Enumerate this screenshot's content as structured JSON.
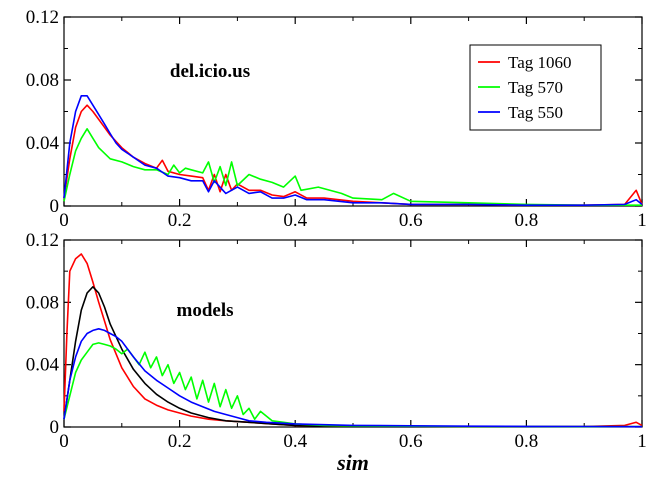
{
  "chart_data": [
    {
      "type": "line",
      "panel": "top",
      "title": "del.icio.us",
      "xlabel": "",
      "ylabel": "",
      "xlim": [
        0,
        1
      ],
      "ylim": [
        0,
        0.12
      ],
      "xticks": [
        "0",
        "0.2",
        "0.4",
        "0.6",
        "0.8",
        "1"
      ],
      "yticks": [
        "0",
        "0.04",
        "0.08",
        "0.12"
      ],
      "grid": false,
      "legend": {
        "placement": "top-right",
        "entries": [
          "Tag 1060",
          "Tag 570",
          "Tag 550"
        ]
      },
      "series": [
        {
          "name": "Tag 1060",
          "color": "#ff0000",
          "x": [
            0,
            0.01,
            0.02,
            0.03,
            0.04,
            0.05,
            0.06,
            0.07,
            0.08,
            0.09,
            0.1,
            0.12,
            0.14,
            0.16,
            0.17,
            0.18,
            0.2,
            0.22,
            0.24,
            0.25,
            0.26,
            0.27,
            0.28,
            0.29,
            0.3,
            0.32,
            0.34,
            0.36,
            0.38,
            0.4,
            0.42,
            0.45,
            0.5,
            0.55,
            0.6,
            0.7,
            0.8,
            0.9,
            0.97,
            0.99,
            1.0
          ],
          "y": [
            0.005,
            0.03,
            0.05,
            0.06,
            0.064,
            0.06,
            0.055,
            0.05,
            0.045,
            0.041,
            0.037,
            0.031,
            0.027,
            0.024,
            0.029,
            0.022,
            0.02,
            0.019,
            0.018,
            0.01,
            0.02,
            0.009,
            0.02,
            0.01,
            0.014,
            0.01,
            0.01,
            0.007,
            0.006,
            0.009,
            0.005,
            0.005,
            0.003,
            0.002,
            0.001,
            0.001,
            0.0005,
            0.0005,
            0.001,
            0.01,
            0.001
          ]
        },
        {
          "name": "Tag 570",
          "color": "#00ff00",
          "x": [
            0,
            0.01,
            0.02,
            0.03,
            0.04,
            0.05,
            0.06,
            0.08,
            0.1,
            0.12,
            0.14,
            0.16,
            0.18,
            0.19,
            0.2,
            0.21,
            0.22,
            0.24,
            0.25,
            0.26,
            0.27,
            0.28,
            0.29,
            0.3,
            0.32,
            0.34,
            0.36,
            0.38,
            0.4,
            0.41,
            0.44,
            0.48,
            0.5,
            0.55,
            0.57,
            0.6,
            0.7,
            0.8,
            0.9,
            1.0
          ],
          "y": [
            0.003,
            0.02,
            0.035,
            0.043,
            0.049,
            0.043,
            0.037,
            0.03,
            0.028,
            0.025,
            0.023,
            0.023,
            0.02,
            0.026,
            0.021,
            0.024,
            0.023,
            0.021,
            0.028,
            0.015,
            0.025,
            0.013,
            0.028,
            0.013,
            0.02,
            0.017,
            0.015,
            0.012,
            0.019,
            0.01,
            0.012,
            0.008,
            0.005,
            0.004,
            0.008,
            0.003,
            0.002,
            0.001,
            0.0005,
            0.0005
          ]
        },
        {
          "name": "Tag 550",
          "color": "#0000ff",
          "x": [
            0,
            0.01,
            0.02,
            0.03,
            0.04,
            0.05,
            0.06,
            0.07,
            0.08,
            0.09,
            0.1,
            0.12,
            0.14,
            0.16,
            0.18,
            0.2,
            0.22,
            0.24,
            0.25,
            0.26,
            0.28,
            0.3,
            0.32,
            0.34,
            0.36,
            0.38,
            0.4,
            0.42,
            0.45,
            0.5,
            0.55,
            0.6,
            0.7,
            0.8,
            0.9,
            0.97,
            0.99,
            1.0
          ],
          "y": [
            0.005,
            0.04,
            0.06,
            0.07,
            0.07,
            0.064,
            0.058,
            0.052,
            0.046,
            0.04,
            0.036,
            0.031,
            0.026,
            0.024,
            0.019,
            0.018,
            0.016,
            0.016,
            0.009,
            0.016,
            0.008,
            0.012,
            0.008,
            0.009,
            0.005,
            0.005,
            0.007,
            0.004,
            0.004,
            0.002,
            0.002,
            0.001,
            0.001,
            0.0005,
            0.0005,
            0.001,
            0.004,
            0.001
          ]
        }
      ]
    },
    {
      "type": "line",
      "panel": "bottom",
      "title": "models",
      "xlabel": "sim",
      "ylabel": "",
      "xlim": [
        0,
        1
      ],
      "ylim": [
        0,
        0.12
      ],
      "xticks": [
        "0",
        "0.2",
        "0.4",
        "0.6",
        "0.8",
        "1"
      ],
      "yticks": [
        "0",
        "0.04",
        "0.08",
        "0.12"
      ],
      "grid": false,
      "series": [
        {
          "color": "#ff0000",
          "x": [
            0,
            0.005,
            0.01,
            0.02,
            0.03,
            0.04,
            0.05,
            0.06,
            0.07,
            0.08,
            0.1,
            0.12,
            0.14,
            0.16,
            0.18,
            0.2,
            0.22,
            0.25,
            0.28,
            0.32,
            0.36,
            0.4,
            0.5,
            0.6,
            0.7,
            0.8,
            0.9,
            0.97,
            0.99,
            1.0
          ],
          "y": [
            0.01,
            0.06,
            0.1,
            0.108,
            0.111,
            0.105,
            0.093,
            0.08,
            0.068,
            0.056,
            0.038,
            0.026,
            0.018,
            0.014,
            0.011,
            0.009,
            0.007,
            0.005,
            0.004,
            0.003,
            0.002,
            0.001,
            0.0005,
            0.0005,
            0.0003,
            0.0003,
            0.0003,
            0.001,
            0.003,
            0.001
          ]
        },
        {
          "color": "#000000",
          "x": [
            0,
            0.01,
            0.02,
            0.03,
            0.04,
            0.05,
            0.06,
            0.07,
            0.08,
            0.1,
            0.12,
            0.14,
            0.16,
            0.18,
            0.2,
            0.22,
            0.25,
            0.28,
            0.32,
            0.36,
            0.4,
            0.5,
            0.6,
            0.7,
            0.8,
            0.9,
            1.0
          ],
          "y": [
            0.005,
            0.03,
            0.055,
            0.075,
            0.086,
            0.09,
            0.086,
            0.077,
            0.066,
            0.05,
            0.037,
            0.028,
            0.021,
            0.016,
            0.012,
            0.009,
            0.006,
            0.004,
            0.003,
            0.002,
            0.001,
            0.0005,
            0.0003,
            0.0003,
            0.0002,
            0.0002,
            0.0002
          ]
        },
        {
          "color": "#00ff00",
          "x": [
            0,
            0.01,
            0.02,
            0.03,
            0.04,
            0.05,
            0.06,
            0.07,
            0.08,
            0.09,
            0.1,
            0.11,
            0.12,
            0.13,
            0.14,
            0.15,
            0.16,
            0.17,
            0.18,
            0.19,
            0.2,
            0.21,
            0.22,
            0.23,
            0.24,
            0.25,
            0.26,
            0.27,
            0.28,
            0.29,
            0.3,
            0.31,
            0.32,
            0.33,
            0.34,
            0.36,
            0.38,
            0.4,
            0.45,
            0.5,
            0.6,
            0.7,
            0.8,
            0.9,
            1.0
          ],
          "y": [
            0.005,
            0.02,
            0.035,
            0.043,
            0.048,
            0.053,
            0.054,
            0.053,
            0.052,
            0.05,
            0.047,
            0.05,
            0.045,
            0.04,
            0.048,
            0.038,
            0.045,
            0.033,
            0.04,
            0.028,
            0.035,
            0.024,
            0.032,
            0.018,
            0.03,
            0.016,
            0.028,
            0.013,
            0.024,
            0.012,
            0.02,
            0.008,
            0.012,
            0.005,
            0.01,
            0.004,
            0.003,
            0.002,
            0.001,
            0.0007,
            0.0005,
            0.0003,
            0.0003,
            0.0002,
            0.0002
          ]
        },
        {
          "color": "#0000ff",
          "x": [
            0,
            0.01,
            0.02,
            0.03,
            0.04,
            0.05,
            0.06,
            0.07,
            0.08,
            0.09,
            0.1,
            0.12,
            0.14,
            0.16,
            0.18,
            0.2,
            0.22,
            0.24,
            0.26,
            0.28,
            0.3,
            0.32,
            0.35,
            0.4,
            0.45,
            0.5,
            0.6,
            0.7,
            0.8,
            0.9,
            1.0
          ],
          "y": [
            0.005,
            0.03,
            0.045,
            0.055,
            0.06,
            0.062,
            0.063,
            0.062,
            0.06,
            0.058,
            0.055,
            0.045,
            0.036,
            0.03,
            0.025,
            0.02,
            0.016,
            0.013,
            0.01,
            0.008,
            0.006,
            0.004,
            0.003,
            0.002,
            0.0015,
            0.001,
            0.0008,
            0.0005,
            0.0004,
            0.0003,
            0.0002
          ]
        }
      ]
    }
  ]
}
